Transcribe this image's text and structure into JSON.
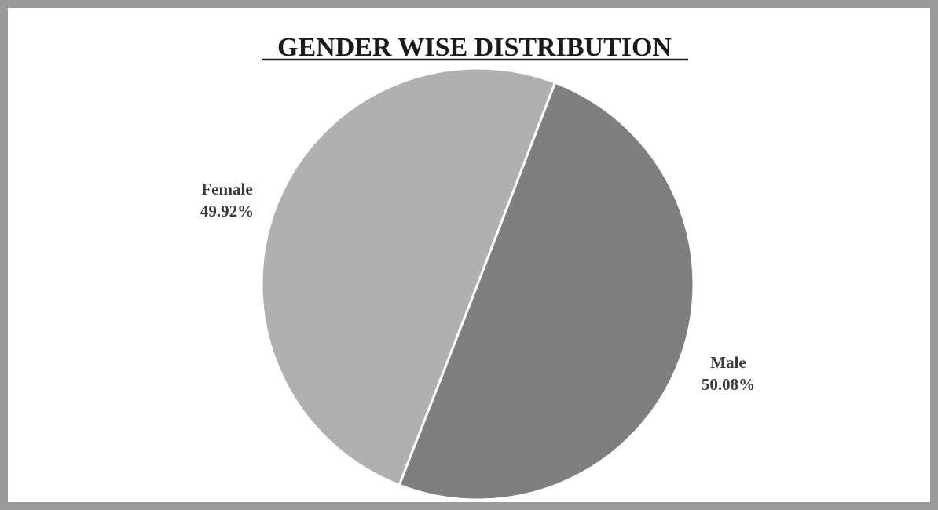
{
  "chart_data": {
    "type": "pie",
    "title": "GENDER WISE DISTRIBUTION",
    "slices": [
      {
        "label": "Male",
        "value": 50.08,
        "value_label": "50.08%",
        "color": "#7f7f7f"
      },
      {
        "label": "Female",
        "value": 49.92,
        "value_label": "49.92%",
        "color": "#b0b0b0"
      }
    ],
    "start_angle_deg": 21,
    "direction": "clockwise",
    "slice_border_color": "#ffffff",
    "legend": "none",
    "label_position": "outside"
  },
  "colors": {
    "frame_border": "#9a9a9a",
    "background": "#ffffff",
    "title": "#1a1a1a",
    "label_text": "#3a3a3a"
  }
}
